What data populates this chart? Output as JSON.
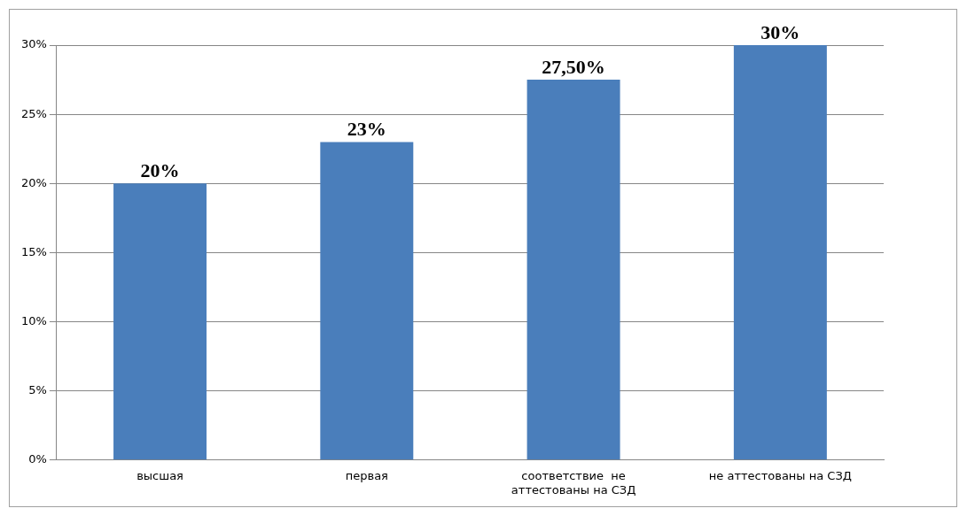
{
  "chart_data": {
    "type": "bar",
    "categories": [
      "высшая",
      "первая",
      "соответствие  не аттестованы на СЗД",
      "не аттестованы на СЗД"
    ],
    "values": [
      20,
      23,
      27.5,
      30
    ],
    "value_labels": [
      "20%",
      "23%",
      "27,50%",
      "30%"
    ],
    "color": "#4a7ebb",
    "ylim": [
      0,
      30
    ],
    "yticks": [
      {
        "value": 0,
        "label": "0%"
      },
      {
        "value": 5,
        "label": "5%"
      },
      {
        "value": 10,
        "label": "10%"
      },
      {
        "value": 15,
        "label": "15%"
      },
      {
        "value": 20,
        "label": "20%"
      },
      {
        "value": 25,
        "label": "25%"
      },
      {
        "value": 30,
        "label": "30%"
      }
    ],
    "grid": "y",
    "legend": false
  }
}
